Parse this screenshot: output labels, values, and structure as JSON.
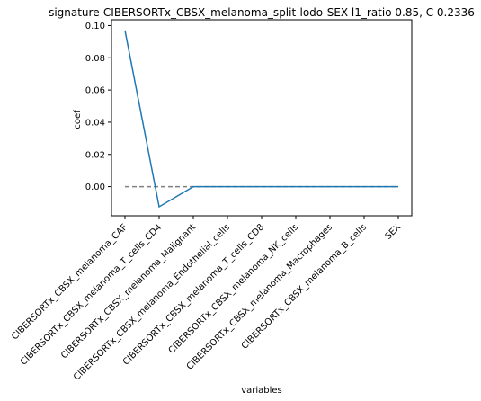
{
  "chart_data": {
    "type": "line",
    "title": "signature-CIBERSORTx_CBSX_melanoma_split-lodo-SEX l1_ratio 0.85, C 0.2336",
    "xlabel": "variables",
    "ylabel": "coef",
    "categories": [
      "CIBERSORTx_CBSX_melanoma_CAF",
      "CIBERSORTx_CBSX_melanoma_T_cells_CD4",
      "CIBERSORTx_CBSX_melanoma_Malignant",
      "CIBERSORTx_CBSX_melanoma_Endothelial_cells",
      "CIBERSORTx_CBSX_melanoma_T_cells_CD8",
      "CIBERSORTx_CBSX_melanoma_NK_cells",
      "CIBERSORTx_CBSX_melanoma_Macrophages",
      "CIBERSORTx_CBSX_melanoma_B_cells",
      "SEX"
    ],
    "series": [
      {
        "values": [
          0.097,
          -0.0125,
          0.0,
          0.0,
          0.0,
          0.0,
          0.0,
          0.0,
          0.0
        ],
        "color": "#1f77b4",
        "style": "solid"
      }
    ],
    "reference_line": {
      "y": 0.0,
      "color": "#808080",
      "style": "dashed"
    },
    "yticks": [
      "0.10",
      "0.08",
      "0.06",
      "0.04",
      "0.02",
      "0.00"
    ],
    "ytick_values": [
      0.1,
      0.08,
      0.06,
      0.04,
      0.02,
      0.0
    ],
    "ylim": [
      -0.0181,
      0.1036
    ],
    "grid": false
  }
}
